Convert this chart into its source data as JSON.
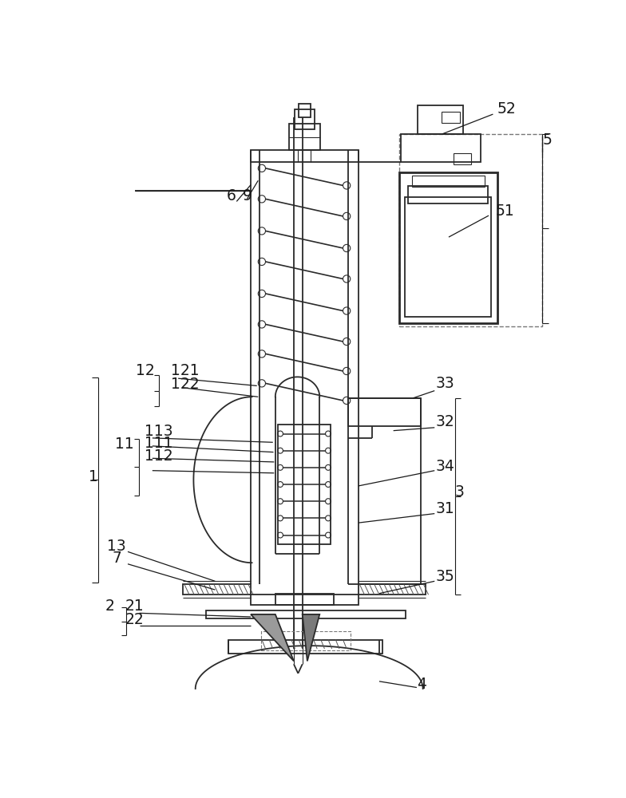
{
  "bg_color": "#ffffff",
  "line_color": "#2a2a2a",
  "lw_thin": 0.8,
  "lw_med": 1.3,
  "lw_thick": 2.0,
  "figsize": [
    7.84,
    10.0
  ],
  "dpi": 100
}
